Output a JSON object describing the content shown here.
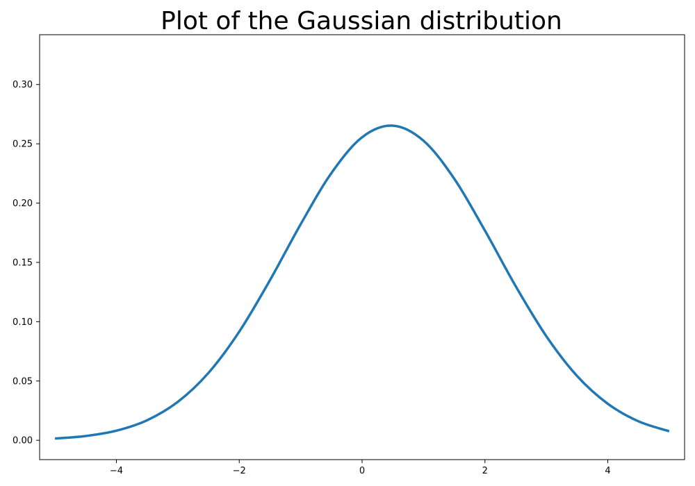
{
  "chart_data": {
    "type": "line",
    "title": "Plot of the Gaussian distribution",
    "xlabel": "",
    "ylabel": "",
    "xlim": [
      -5.25,
      5.25
    ],
    "ylim": [
      -0.0163,
      0.342
    ],
    "x_ticks": [
      -4,
      -2,
      0,
      2,
      4
    ],
    "x_tick_labels": [
      "−4",
      "−2",
      "0",
      "2",
      "4"
    ],
    "y_ticks": [
      0.0,
      0.05,
      0.1,
      0.15,
      0.2,
      0.25,
      0.3
    ],
    "y_tick_labels": [
      "0.00",
      "0.05",
      "0.10",
      "0.15",
      "0.20",
      "0.25",
      "0.30"
    ],
    "grid": false,
    "legend": "none",
    "series": [
      {
        "color": "#1f77b4",
        "x": [
          -5.0,
          -4.5,
          -4.0,
          -3.5,
          -3.0,
          -2.5,
          -2.0,
          -1.5,
          -1.0,
          -0.5,
          0.0,
          0.5,
          1.0,
          1.5,
          2.0,
          2.5,
          3.0,
          3.5,
          4.0,
          4.5,
          5.0
        ],
        "y": [
          0.0015,
          0.0036,
          0.0081,
          0.0169,
          0.0324,
          0.0569,
          0.0916,
          0.135,
          0.1822,
          0.2253,
          0.2555,
          0.2653,
          0.2526,
          0.2206,
          0.1768,
          0.13,
          0.0877,
          0.0542,
          0.0308,
          0.016,
          0.0076
        ]
      }
    ]
  }
}
